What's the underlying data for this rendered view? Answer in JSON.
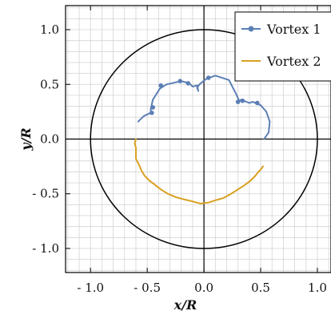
{
  "chart_data": {
    "type": "line",
    "title": "",
    "xlabel": "x/R",
    "ylabel": "y/R",
    "xlim": [
      -1.22,
      1.12
    ],
    "ylim": [
      -1.22,
      1.22
    ],
    "grid": true,
    "x_ticks": [
      -1.0,
      -0.5,
      0.0,
      0.5,
      1.0
    ],
    "y_ticks": [
      1.0,
      0.5,
      0.0,
      -0.5,
      -1.0
    ],
    "x_tick_labels": [
      "- 1.0",
      "- 0.5",
      "0.0",
      "0.5",
      "1.0"
    ],
    "y_tick_labels": [
      "1.0",
      "0.5",
      "0.0",
      "- 0.5",
      "- 1.0"
    ],
    "legend_position": "top-right",
    "boundary_circle_radius": 1.0,
    "colors": {
      "vortex1": "#5b7fb5",
      "vortex2": "#d9a020",
      "circle": "#000000",
      "grid": "#d4d4d4"
    },
    "series": [
      {
        "name": "Vortex 1",
        "marker": "circle",
        "points": [
          [
            -0.58,
            0.16
          ],
          [
            -0.53,
            0.21
          ],
          [
            -0.47,
            0.24
          ],
          [
            -0.46,
            0.23
          ],
          [
            -0.47,
            0.27
          ],
          [
            -0.45,
            0.36
          ],
          [
            -0.39,
            0.46
          ],
          [
            -0.33,
            0.5
          ],
          [
            -0.2,
            0.53
          ],
          [
            -0.13,
            0.51
          ],
          [
            -0.1,
            0.48
          ],
          [
            -0.06,
            0.49
          ],
          [
            -0.05,
            0.44
          ],
          [
            -0.06,
            0.47
          ],
          [
            -0.04,
            0.5
          ],
          [
            0.02,
            0.55
          ],
          [
            0.1,
            0.58
          ],
          [
            0.22,
            0.54
          ],
          [
            0.28,
            0.42
          ],
          [
            0.31,
            0.35
          ],
          [
            0.33,
            0.36
          ],
          [
            0.4,
            0.33
          ],
          [
            0.43,
            0.34
          ],
          [
            0.5,
            0.31
          ],
          [
            0.55,
            0.25
          ],
          [
            0.58,
            0.16
          ],
          [
            0.57,
            0.06
          ],
          [
            0.55,
            0.03
          ],
          [
            0.53,
            0.0
          ]
        ],
        "marker_points": [
          [
            -0.46,
            0.24
          ],
          [
            -0.45,
            0.29
          ],
          [
            -0.38,
            0.49
          ],
          [
            -0.21,
            0.53
          ],
          [
            -0.14,
            0.51
          ],
          [
            0.04,
            0.56
          ],
          [
            0.3,
            0.34
          ],
          [
            0.34,
            0.35
          ],
          [
            0.47,
            0.33
          ]
        ]
      },
      {
        "name": "Vortex 2",
        "marker": "none",
        "points": [
          [
            -0.6,
            0.0
          ],
          [
            -0.61,
            -0.04
          ],
          [
            -0.6,
            -0.08
          ],
          [
            -0.6,
            -0.13
          ],
          [
            -0.6,
            -0.18
          ],
          [
            -0.57,
            -0.24
          ],
          [
            -0.55,
            -0.29
          ],
          [
            -0.52,
            -0.34
          ],
          [
            -0.48,
            -0.38
          ],
          [
            -0.43,
            -0.42
          ],
          [
            -0.38,
            -0.46
          ],
          [
            -0.32,
            -0.5
          ],
          [
            -0.25,
            -0.53
          ],
          [
            -0.18,
            -0.55
          ],
          [
            -0.1,
            -0.57
          ],
          [
            -0.03,
            -0.59
          ],
          [
            0.04,
            -0.58
          ],
          [
            0.1,
            -0.56
          ],
          [
            0.17,
            -0.54
          ],
          [
            0.24,
            -0.5
          ],
          [
            0.3,
            -0.46
          ],
          [
            0.36,
            -0.42
          ],
          [
            0.41,
            -0.38
          ],
          [
            0.45,
            -0.34
          ],
          [
            0.48,
            -0.3
          ],
          [
            0.5,
            -0.28
          ],
          [
            0.52,
            -0.25
          ]
        ]
      }
    ]
  }
}
